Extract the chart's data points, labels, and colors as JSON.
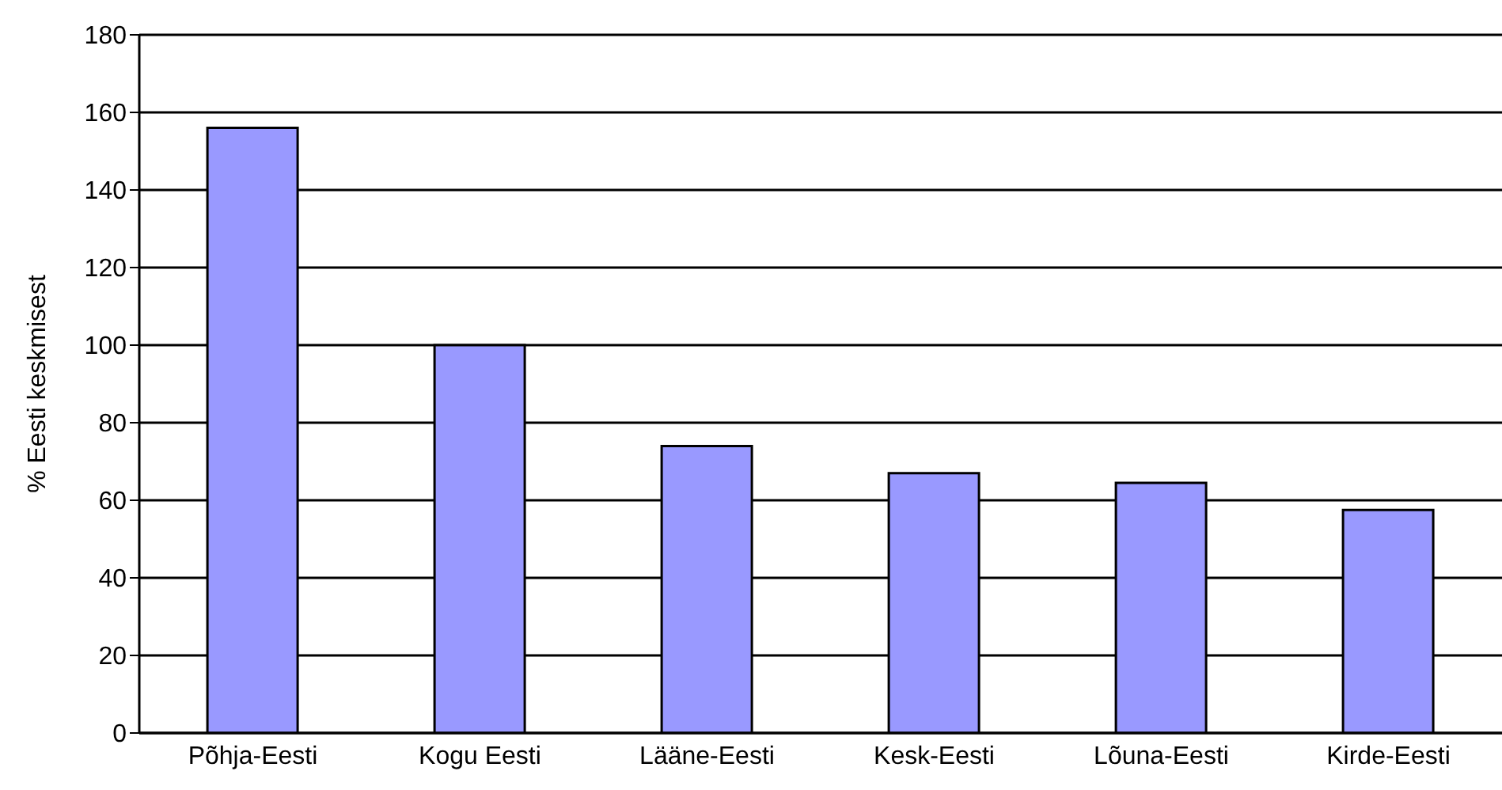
{
  "chart_data": {
    "type": "bar",
    "ylabel": "% Eesti keskmisest",
    "categories": [
      "Põhja-Eesti",
      "Kogu Eesti",
      "Lääne-Eesti",
      "Kesk-Eesti",
      "Lõuna-Eesti",
      "Kirde-Eesti"
    ],
    "values": [
      156,
      100,
      74,
      67,
      64.5,
      57.5
    ],
    "color": "#9999ff",
    "ylim": [
      0,
      180
    ],
    "yticks": [
      0,
      20,
      40,
      60,
      80,
      100,
      120,
      140,
      160,
      180
    ],
    "grid": "y"
  }
}
